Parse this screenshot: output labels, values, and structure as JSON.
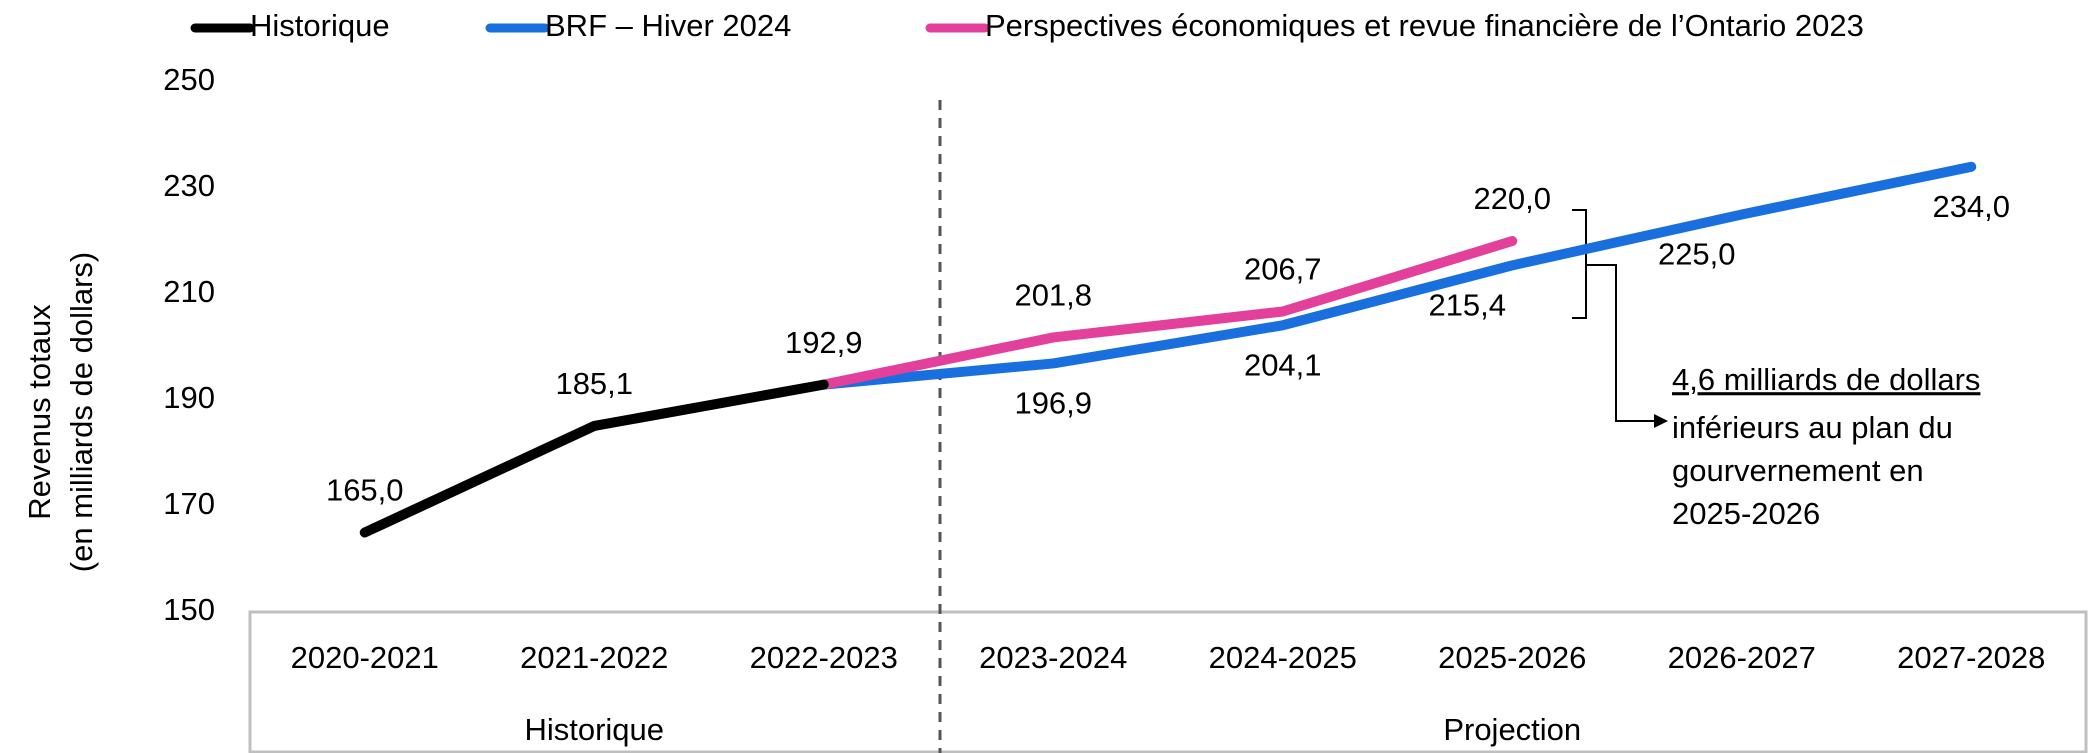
{
  "chart_data": {
    "type": "line",
    "y_axis_label": [
      "Revenus totaux",
      "(en milliards de dollars)"
    ],
    "categories": [
      "2020-2021",
      "2021-2022",
      "2022-2023",
      "2023-2024",
      "2024-2025",
      "2025-2026",
      "2026-2027",
      "2027-2028"
    ],
    "category_groups": [
      "Historique",
      "Projection"
    ],
    "series": [
      {
        "name": "Historique",
        "color": "#000000",
        "values": [
          165.0,
          185.1,
          192.9,
          null,
          null,
          null,
          null,
          null
        ],
        "value_labels": [
          "165,0",
          "185,1",
          "192,9",
          null,
          null,
          null,
          null,
          null
        ]
      },
      {
        "name": "BRF – Hiver 2024",
        "color": "#1a6fdf",
        "values": [
          null,
          null,
          192.9,
          196.9,
          204.1,
          215.4,
          225.0,
          234.0
        ],
        "value_labels": [
          null,
          null,
          null,
          "196,9",
          "204,1",
          "215,4",
          "225,0",
          "234,0"
        ]
      },
      {
        "name": "Perspectives économiques et revue financière de l’Ontario 2023",
        "color": "#e2409a",
        "values": [
          null,
          null,
          192.9,
          201.8,
          206.7,
          220.0,
          null,
          null
        ],
        "value_labels": [
          null,
          null,
          null,
          "201,8",
          "206,7",
          "220,0",
          null,
          null
        ]
      }
    ],
    "annotation": [
      "4,6 milliards de dollars",
      "inférieurs au plan du",
      "gourvernement en",
      "2025-2026"
    ],
    "ylim": [
      150,
      250
    ],
    "yticks": [
      150,
      170,
      190,
      210,
      230,
      250
    ],
    "legend": "top"
  }
}
